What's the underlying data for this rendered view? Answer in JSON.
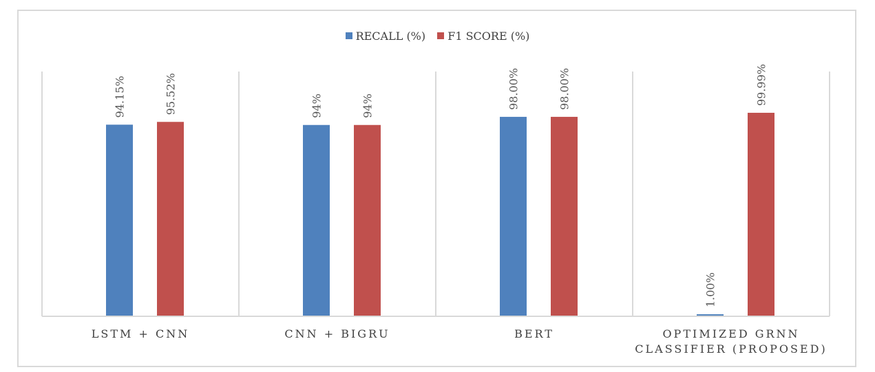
{
  "chart_data": {
    "type": "bar",
    "categories": [
      [
        "LSTM + CNN"
      ],
      [
        "CNN + BIGRU"
      ],
      [
        "BERT"
      ],
      [
        "OPTIMIZED GRNN",
        "CLASSIFIER (PROPOSED)"
      ]
    ],
    "series": [
      {
        "name": "RECALL (%)",
        "color": "#4f81bd",
        "values": [
          94.15,
          94,
          98.0,
          1.0
        ],
        "labels": [
          "94.15%",
          "94%",
          "98.00%",
          "1.00%"
        ]
      },
      {
        "name": "F1 SCORE (%)",
        "color": "#c0504d",
        "values": [
          95.52,
          94,
          98.0,
          99.99
        ],
        "labels": [
          "95.52%",
          "94%",
          "98.00%",
          "99.99%"
        ]
      }
    ],
    "ylim": [
      0,
      100
    ],
    "legend_position": "top-center",
    "grid": "vertical category separators",
    "title": "",
    "xlabel": "",
    "ylabel": ""
  }
}
